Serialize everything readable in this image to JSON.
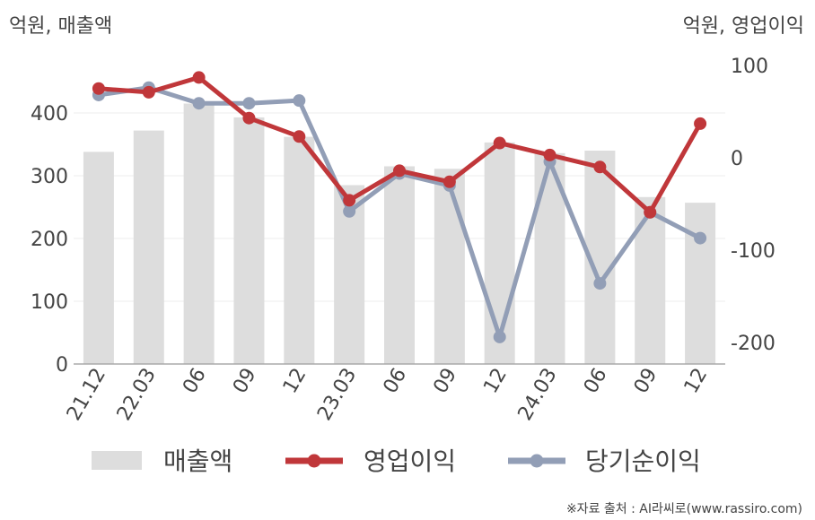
{
  "chart_data": {
    "type": "bar+line",
    "left_axis_unit": "억원, 매출액",
    "right_axis_unit": "억원, 영업이익",
    "categories": [
      "21.12",
      "22.03",
      "06",
      "09",
      "12",
      "23.03",
      "06",
      "09",
      "12",
      "24.03",
      "06",
      "09",
      "12"
    ],
    "left_ylim": [
      0,
      480
    ],
    "left_ticks": [
      0,
      100,
      200,
      300,
      400
    ],
    "right_ylim": [
      -222,
      100
    ],
    "right_ticks": [
      100,
      0,
      -100,
      -200
    ],
    "bar_series": {
      "name": "매출액",
      "axis": "left",
      "color": "#dddddd",
      "values": [
        338,
        372,
        415,
        393,
        362,
        285,
        315,
        311,
        353,
        336,
        340,
        266,
        257
      ]
    },
    "line_series": [
      {
        "name": "영업이익",
        "axis": "right",
        "color": "#c0373a",
        "values": [
          75,
          71,
          87,
          43,
          23,
          -46,
          -14,
          -26,
          16,
          3,
          -10,
          -59,
          37
        ]
      },
      {
        "name": "당기순이익",
        "axis": "right",
        "color": "#929eb6",
        "values": [
          68,
          76,
          59,
          59,
          62,
          -58,
          -17,
          -30,
          -194,
          -4,
          -136,
          -59,
          -87
        ]
      }
    ],
    "legend": {
      "placement": "bottom",
      "items": [
        {
          "label": "매출액",
          "kind": "bar",
          "color": "#dddddd"
        },
        {
          "label": "영업이익",
          "kind": "line",
          "color": "#c0373a"
        },
        {
          "label": "당기순이익",
          "kind": "line",
          "color": "#929eb6"
        }
      ]
    },
    "source": "※자료 출처 : AI라씨로(www.rassiro.com)",
    "grid": true
  }
}
